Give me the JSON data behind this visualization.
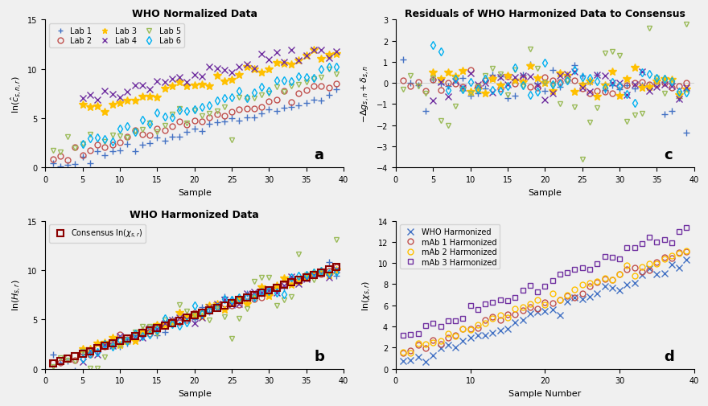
{
  "title_a": "WHO Normalized Data",
  "title_b": "WHO Harmonized Data",
  "title_c": "Residuals of WHO Harmonized Data to Consensus",
  "xlabel_ab": "Sample",
  "xlabel_c": "Sample",
  "xlabel_d": "Sample Number",
  "ylabel_a": "ln($\\hat{c}_{s,n,r}$)",
  "ylabel_b": "ln($H_{s,r}$)",
  "ylabel_c": "$-\\Delta g_{s,n} + \\delta_{s,n}$",
  "ylabel_d": "ln($\\chi_{s,r}$)",
  "ylim_ab": [
    0,
    15
  ],
  "ylim_c": [
    -4,
    3
  ],
  "ylim_d": [
    0,
    14
  ],
  "xlim": [
    0,
    40
  ],
  "lab_colors": [
    "#4472C4",
    "#C0504D",
    "#FFC000",
    "#7030A0",
    "#9BBB59",
    "#00B0F0"
  ],
  "lab_labels": [
    "Lab 1",
    "Lab 2",
    "Lab 3",
    "Lab 4",
    "Lab 5",
    "Lab 6"
  ],
  "lab_markers": [
    "+",
    "o",
    "*",
    "x",
    "v",
    "d"
  ],
  "mab_colors": [
    "#4472C4",
    "#C0504D",
    "#FFC000",
    "#7030A0"
  ],
  "mab_labels": [
    "WHO Harmonized",
    "mAb 1 Harmonized",
    "mAb 2 Harmonized",
    "mAb 3 Harmonized"
  ],
  "mab_markers": [
    "x",
    "o",
    "o",
    "s"
  ],
  "consensus_color": "#8B0000",
  "n_samples": 39,
  "background_color": "#F0F0F0"
}
